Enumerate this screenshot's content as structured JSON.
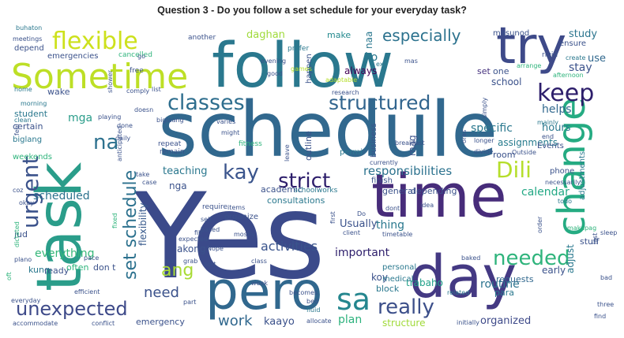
{
  "title": "Question 3 - Do you follow a set schedule for your everyday task?",
  "words": [
    {
      "text": "schedule",
      "color": "#31688e"
    },
    {
      "text": "Yes",
      "color": "#3b4a8a"
    },
    {
      "text": "follow",
      "color": "#2a788e"
    },
    {
      "text": "task",
      "color": "#2a9d8a"
    },
    {
      "text": "time",
      "color": "#472c7a"
    },
    {
      "text": "pero",
      "color": "#31688e"
    },
    {
      "text": "day",
      "color": "#443983"
    },
    {
      "text": "Sometime",
      "color": "#bddf26"
    },
    {
      "text": "try",
      "color": "#3e4a89"
    },
    {
      "text": "change",
      "color": "#25ab82"
    },
    {
      "text": "flexible",
      "color": "#cde11d"
    },
    {
      "text": "keep",
      "color": "#2d1e6b"
    },
    {
      "text": "classes",
      "color": "#2e6e8e"
    },
    {
      "text": "structured",
      "color": "#32658e"
    },
    {
      "text": "especially",
      "color": "#2c728e"
    },
    {
      "text": "Dili",
      "color": "#b5de2b"
    },
    {
      "text": "kay",
      "color": "#3a548c"
    },
    {
      "text": "strict",
      "color": "#2d1e6b"
    },
    {
      "text": "urgent",
      "color": "#3b528b"
    },
    {
      "text": "na",
      "color": "#2d718e"
    },
    {
      "text": "set schedule",
      "color": "#2c718e"
    },
    {
      "text": "unexpected",
      "color": "#3e4a89"
    },
    {
      "text": "sa",
      "color": "#24868e"
    },
    {
      "text": "really",
      "color": "#3c4f8a"
    },
    {
      "text": "needed",
      "color": "#2fb47c"
    },
    {
      "text": "ang",
      "color": "#a8db34"
    },
    {
      "text": "need",
      "color": "#3b528b"
    },
    {
      "text": "work",
      "color": "#31688e"
    },
    {
      "text": "activities",
      "color": "#3a548c"
    },
    {
      "text": "responsibilities",
      "color": "#2c728e"
    },
    {
      "text": "scheduled",
      "color": "#2c738e"
    },
    {
      "text": "everything",
      "color": "#35b779"
    },
    {
      "text": "flexibility",
      "color": "#37598c"
    },
    {
      "text": "teaching",
      "color": "#2a778e"
    },
    {
      "text": "calendar",
      "color": "#22a884"
    },
    {
      "text": "important",
      "color": "#2d1e6b"
    },
    {
      "text": "specific",
      "color": "#2a788e"
    },
    {
      "text": "assignments",
      "color": "#287c8e"
    },
    {
      "text": "helps",
      "color": "#31688e"
    },
    {
      "text": "hours",
      "color": "#2a788e"
    },
    {
      "text": "study",
      "color": "#2b758e"
    },
    {
      "text": "stay",
      "color": "#3b528b"
    },
    {
      "text": "use",
      "color": "#31688e"
    },
    {
      "text": "always",
      "color": "#440154"
    },
    {
      "text": "ko",
      "color": "#2a788e"
    },
    {
      "text": "naa",
      "color": "#2a778e"
    },
    {
      "text": "make",
      "color": "#23898e"
    },
    {
      "text": "daghan",
      "color": "#9fda3a"
    },
    {
      "text": "mga",
      "color": "#2a9d8a"
    },
    {
      "text": "school",
      "color": "#3b528b"
    },
    {
      "text": "set",
      "color": "#46327e"
    },
    {
      "text": "one",
      "color": "#3b528b"
    },
    {
      "text": "room",
      "color": "#3b528b"
    },
    {
      "text": "thing",
      "color": "#2a788e"
    },
    {
      "text": "Usually",
      "color": "#3b528b"
    },
    {
      "text": "plan",
      "color": "#2db27d"
    },
    {
      "text": "kaayo",
      "color": "#3b528b"
    },
    {
      "text": "routine",
      "color": "#2c738e"
    },
    {
      "text": "organized",
      "color": "#3e4a89"
    },
    {
      "text": "requests",
      "color": "#31688e"
    },
    {
      "text": "para",
      "color": "#2a788e"
    },
    {
      "text": "early",
      "color": "#3b528b"
    },
    {
      "text": "adjust",
      "color": "#2a788e"
    },
    {
      "text": "stuff",
      "color": "#3b528b"
    },
    {
      "text": "koy",
      "color": "#3b528b"
    },
    {
      "text": "trabaho",
      "color": "#1fa088"
    },
    {
      "text": "block",
      "color": "#2a788e"
    },
    {
      "text": "structure",
      "color": "#a0da39"
    },
    {
      "text": "emergency",
      "color": "#3b528b"
    },
    {
      "text": "don t",
      "color": "#3b528b"
    },
    {
      "text": "kung",
      "color": "#2a788e"
    },
    {
      "text": "ready",
      "color": "#3b528b"
    },
    {
      "text": "often",
      "color": "#2fb47c"
    },
    {
      "text": "jud",
      "color": "#3b528b"
    },
    {
      "text": "akong",
      "color": "#3b528b"
    },
    {
      "text": "nga",
      "color": "#3b528b"
    },
    {
      "text": "certain",
      "color": "#3b528b"
    },
    {
      "text": "biglang",
      "color": "#2a788e"
    },
    {
      "text": "weekends",
      "color": "#2fb47c"
    },
    {
      "text": "student",
      "color": "#2a788e"
    },
    {
      "text": "wake",
      "color": "#3b528b"
    },
    {
      "text": "emergencies",
      "color": "#3b528b"
    },
    {
      "text": "depend",
      "color": "#3b528b"
    },
    {
      "text": "buhaton",
      "color": "#2a788e"
    },
    {
      "text": "meetings",
      "color": "#3b528b"
    },
    {
      "text": "academic",
      "color": "#3b528b"
    },
    {
      "text": "schoolworks",
      "color": "#2a788e"
    },
    {
      "text": "consultations",
      "color": "#2a788e"
    },
    {
      "text": "general",
      "color": "#3b528b"
    },
    {
      "text": "depending",
      "color": "#3b528b"
    },
    {
      "text": "finish",
      "color": "#3b528b"
    },
    {
      "text": "permi",
      "color": "#2a788e"
    },
    {
      "text": "mag",
      "color": "#3b528b"
    },
    {
      "text": "business",
      "color": "#3b528b"
    },
    {
      "text": "outline",
      "color": "#3b528b"
    },
    {
      "text": "happen",
      "color": "#3b528b"
    },
    {
      "text": "masunod",
      "color": "#3b528b"
    },
    {
      "text": "ensure",
      "color": "#3b528b"
    },
    {
      "text": "rigid",
      "color": "#3b528b"
    },
    {
      "text": "create",
      "color": "#2a788e"
    },
    {
      "text": "afternoon",
      "color": "#2fb47c"
    },
    {
      "text": "arrange",
      "color": "#2fb47c"
    },
    {
      "text": "mas",
      "color": "#3b528b"
    },
    {
      "text": "ex",
      "color": "#2a788e"
    },
    {
      "text": "prefer",
      "color": "#2a788e"
    },
    {
      "text": "another",
      "color": "#3b528b"
    },
    {
      "text": "cancelled",
      "color": "#2fb47c"
    },
    {
      "text": "free",
      "color": "#3b528b"
    },
    {
      "text": "go",
      "color": "#3b528b"
    },
    {
      "text": "shower",
      "color": "#3b528b"
    },
    {
      "text": "evening",
      "color": "#3b528b"
    },
    {
      "text": "good",
      "color": "#3b528b"
    },
    {
      "text": "games",
      "color": "#b5de2b"
    },
    {
      "text": "adaptable",
      "color": "#b5de2b"
    },
    {
      "text": "research",
      "color": "#3b528b"
    },
    {
      "text": "comply",
      "color": "#3b528b"
    },
    {
      "text": "list",
      "color": "#3b528b"
    },
    {
      "text": "playing",
      "color": "#3b528b"
    },
    {
      "text": "doesn",
      "color": "#3b528b"
    },
    {
      "text": "done",
      "color": "#3b528b"
    },
    {
      "text": "daily",
      "color": "#3b528b"
    },
    {
      "text": "biglaang",
      "color": "#3b528b"
    },
    {
      "text": "varies",
      "color": "#3b528b"
    },
    {
      "text": "might",
      "color": "#3b528b"
    },
    {
      "text": "fitness",
      "color": "#2fb47c"
    },
    {
      "text": "repeat",
      "color": "#3b528b"
    },
    {
      "text": "remain",
      "color": "#3b528b"
    },
    {
      "text": "leave",
      "color": "#3b528b"
    },
    {
      "text": "currently",
      "color": "#3b528b"
    },
    {
      "text": "breakfast",
      "color": "#3b528b"
    },
    {
      "text": "longer",
      "color": "#3b528b"
    },
    {
      "text": "divide",
      "color": "#3b528b"
    },
    {
      "text": "Outside",
      "color": "#3b528b"
    },
    {
      "text": "Events",
      "color": "#3b528b"
    },
    {
      "text": "end",
      "color": "#3b528b"
    },
    {
      "text": "mainly",
      "color": "#2a788e"
    },
    {
      "text": "oras",
      "color": "#3b528b"
    },
    {
      "text": "simply",
      "color": "#3b528b"
    },
    {
      "text": "anticipated",
      "color": "#3b528b"
    },
    {
      "text": "home",
      "color": "#2a788e"
    },
    {
      "text": "morning",
      "color": "#2a788e"
    },
    {
      "text": "clean",
      "color": "#2a788e"
    },
    {
      "text": "feel",
      "color": "#3b528b"
    },
    {
      "text": "take",
      "color": "#3b528b"
    },
    {
      "text": "case",
      "color": "#3b528b"
    },
    {
      "text": "require",
      "color": "#3b528b"
    },
    {
      "text": "items",
      "color": "#3b528b"
    },
    {
      "text": "organize",
      "color": "#3b528b"
    },
    {
      "text": "self",
      "color": "#3b528b"
    },
    {
      "text": "based",
      "color": "#3b528b"
    },
    {
      "text": "mostly",
      "color": "#3b528b"
    },
    {
      "text": "class",
      "color": "#3b528b"
    },
    {
      "text": "first",
      "color": "#3b528b"
    },
    {
      "text": "Do",
      "color": "#3b528b"
    },
    {
      "text": "dont",
      "color": "#3b528b"
    },
    {
      "text": "idea",
      "color": "#3b528b"
    },
    {
      "text": "timetable",
      "color": "#3b528b"
    },
    {
      "text": "client",
      "color": "#3b528b"
    },
    {
      "text": "phone",
      "color": "#3b528b"
    },
    {
      "text": "necessarily",
      "color": "#3b528b"
    },
    {
      "text": "adjustments",
      "color": "#2a788e"
    },
    {
      "text": "todo",
      "color": "#2a788e"
    },
    {
      "text": "order",
      "color": "#3b528b"
    },
    {
      "text": "makapag",
      "color": "#2fb47c"
    },
    {
      "text": "sleep",
      "color": "#3b528b"
    },
    {
      "text": "last",
      "color": "#3b528b"
    },
    {
      "text": "baked",
      "color": "#3b528b"
    },
    {
      "text": "personal",
      "color": "#2a788e"
    },
    {
      "text": "medical",
      "color": "#2a788e"
    },
    {
      "text": "bad",
      "color": "#3b528b"
    },
    {
      "text": "three",
      "color": "#3b528b"
    },
    {
      "text": "find",
      "color": "#3b528b"
    },
    {
      "text": "related",
      "color": "#2a788e"
    },
    {
      "text": "initially",
      "color": "#3b528b"
    },
    {
      "text": "allocate",
      "color": "#3b528b"
    },
    {
      "text": "fluid",
      "color": "#2a788e"
    },
    {
      "text": "bed",
      "color": "#3b528b"
    },
    {
      "text": "becomes",
      "color": "#3b528b"
    },
    {
      "text": "week",
      "color": "#3b528b"
    },
    {
      "text": "part",
      "color": "#3b528b"
    },
    {
      "text": "sort",
      "color": "#3b528b"
    },
    {
      "text": "grab",
      "color": "#3b528b"
    },
    {
      "text": "lalo",
      "color": "#3b528b"
    },
    {
      "text": "expected",
      "color": "#3b528b"
    },
    {
      "text": "fill",
      "color": "#3b528b"
    },
    {
      "text": "Nope",
      "color": "#3b528b"
    },
    {
      "text": "fixed",
      "color": "#2fb47c"
    },
    {
      "text": "dictated",
      "color": "#2fb47c"
    },
    {
      "text": "plano",
      "color": "#3b528b"
    },
    {
      "text": "okay",
      "color": "#3b528b"
    },
    {
      "text": "coz",
      "color": "#3b528b"
    },
    {
      "text": "pace",
      "color": "#3b528b"
    },
    {
      "text": "efficient",
      "color": "#3b528b"
    },
    {
      "text": "everyday",
      "color": "#3b528b"
    },
    {
      "text": "accommodate",
      "color": "#3b528b"
    },
    {
      "text": "conflict",
      "color": "#3b528b"
    },
    {
      "text": "oft",
      "color": "#2fb47c"
    }
  ]
}
